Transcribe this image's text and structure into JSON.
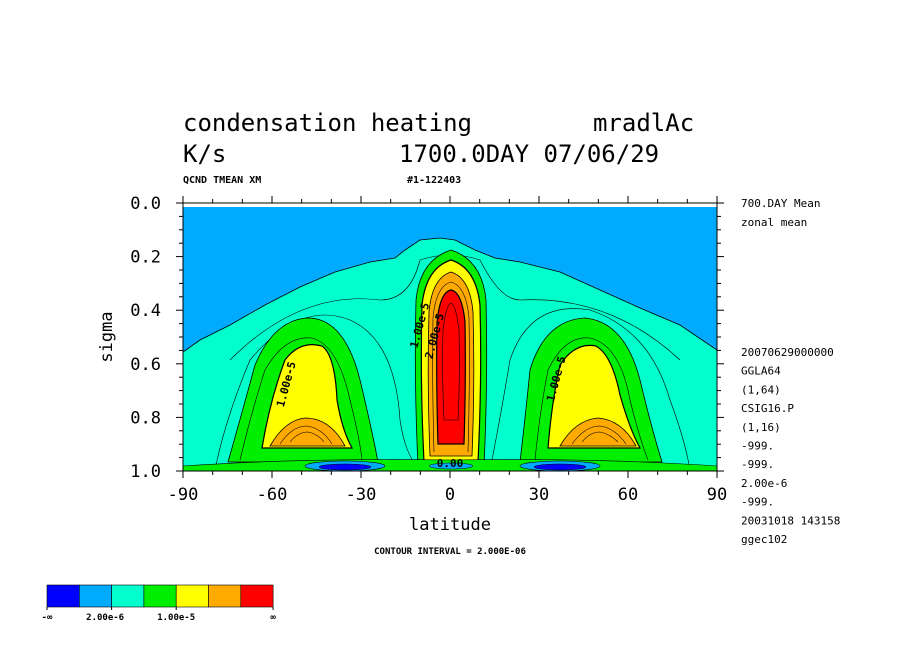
{
  "header": {
    "title_line1_left": "condensation heating",
    "title_line1_right": "mradlAc",
    "title_line2_left": "K/s",
    "title_line2_right": "1700.0DAY 07/06/29",
    "sub_left": "QCND TMEAN XM",
    "sub_right": "#1-122403"
  },
  "side_info": {
    "top": [
      "700.DAY Mean",
      "zonal mean"
    ],
    "bottom": [
      "20070629000000",
      "GGLA64",
      "(1,64)",
      "CSIG16.P",
      "(1,16)",
      "-999.",
      "-999.",
      "2.00e-6",
      "-999.",
      "20031018 143158",
      "ggec102"
    ]
  },
  "footer": {
    "contour_interval": "CONTOUR INTERVAL = 2.000E-06"
  },
  "colorbar": {
    "colors": [
      "#0000ff",
      "#00aaff",
      "#00ffcc",
      "#00ee00",
      "#ffff00",
      "#ffaa00",
      "#ff0000"
    ],
    "labels": [
      "-∞",
      "2.00e-6",
      "1.00e-5",
      "∞"
    ]
  },
  "chart_data": {
    "type": "heatmap",
    "title": "condensation heating",
    "units": "K/s",
    "xlabel": "latitude",
    "ylabel": "sigma",
    "xlim": [
      -90,
      90
    ],
    "ylim": [
      1.0,
      0.0
    ],
    "x_ticks": [
      -90,
      -60,
      -30,
      0,
      30,
      60,
      90
    ],
    "x_tick_labels": [
      "-90",
      "-60",
      "-30",
      "0",
      "30",
      "60",
      "90"
    ],
    "y_ticks": [
      0.0,
      0.2,
      0.4,
      0.6,
      0.8,
      1.0
    ],
    "y_tick_labels": [
      "0.0",
      "0.2",
      "0.4",
      "0.6",
      "0.8",
      "1.0"
    ],
    "contour_interval": 2e-06,
    "contour_labels": [
      {
        "text": "1.00e-5",
        "lat": -54,
        "sigma": 0.68
      },
      {
        "text": "1.00e-5",
        "lat": -9,
        "sigma": 0.46
      },
      {
        "text": "2.00e-5",
        "lat": -4,
        "sigma": 0.5
      },
      {
        "text": "1.00e-5",
        "lat": 37,
        "sigma": 0.66
      },
      {
        "text": "0.00",
        "lat": 0,
        "sigma": 0.985
      }
    ],
    "regions": [
      {
        "level": "0 to 2e-6",
        "color": "#00ffcc",
        "desc": "lower troposphere background"
      },
      {
        "level": "2e-6 to 4e-6",
        "color": "#00ee00"
      },
      {
        "level": "1e-5 to 1.4e-5",
        "color": "#ffff00",
        "maxima_lat": [
          -50,
          50
        ],
        "maxima_sigma": 0.85
      },
      {
        "level": "1.4e-5 to 2e-5",
        "color": "#ffaa00"
      },
      {
        "level": ">2e-5",
        "color": "#ff0000",
        "maxima_lat": [
          0
        ],
        "maxima_sigma": 0.55
      },
      {
        "level": "<0",
        "color": "#0000ff",
        "desc": "near-surface minima at lat -40 and 40"
      }
    ]
  }
}
